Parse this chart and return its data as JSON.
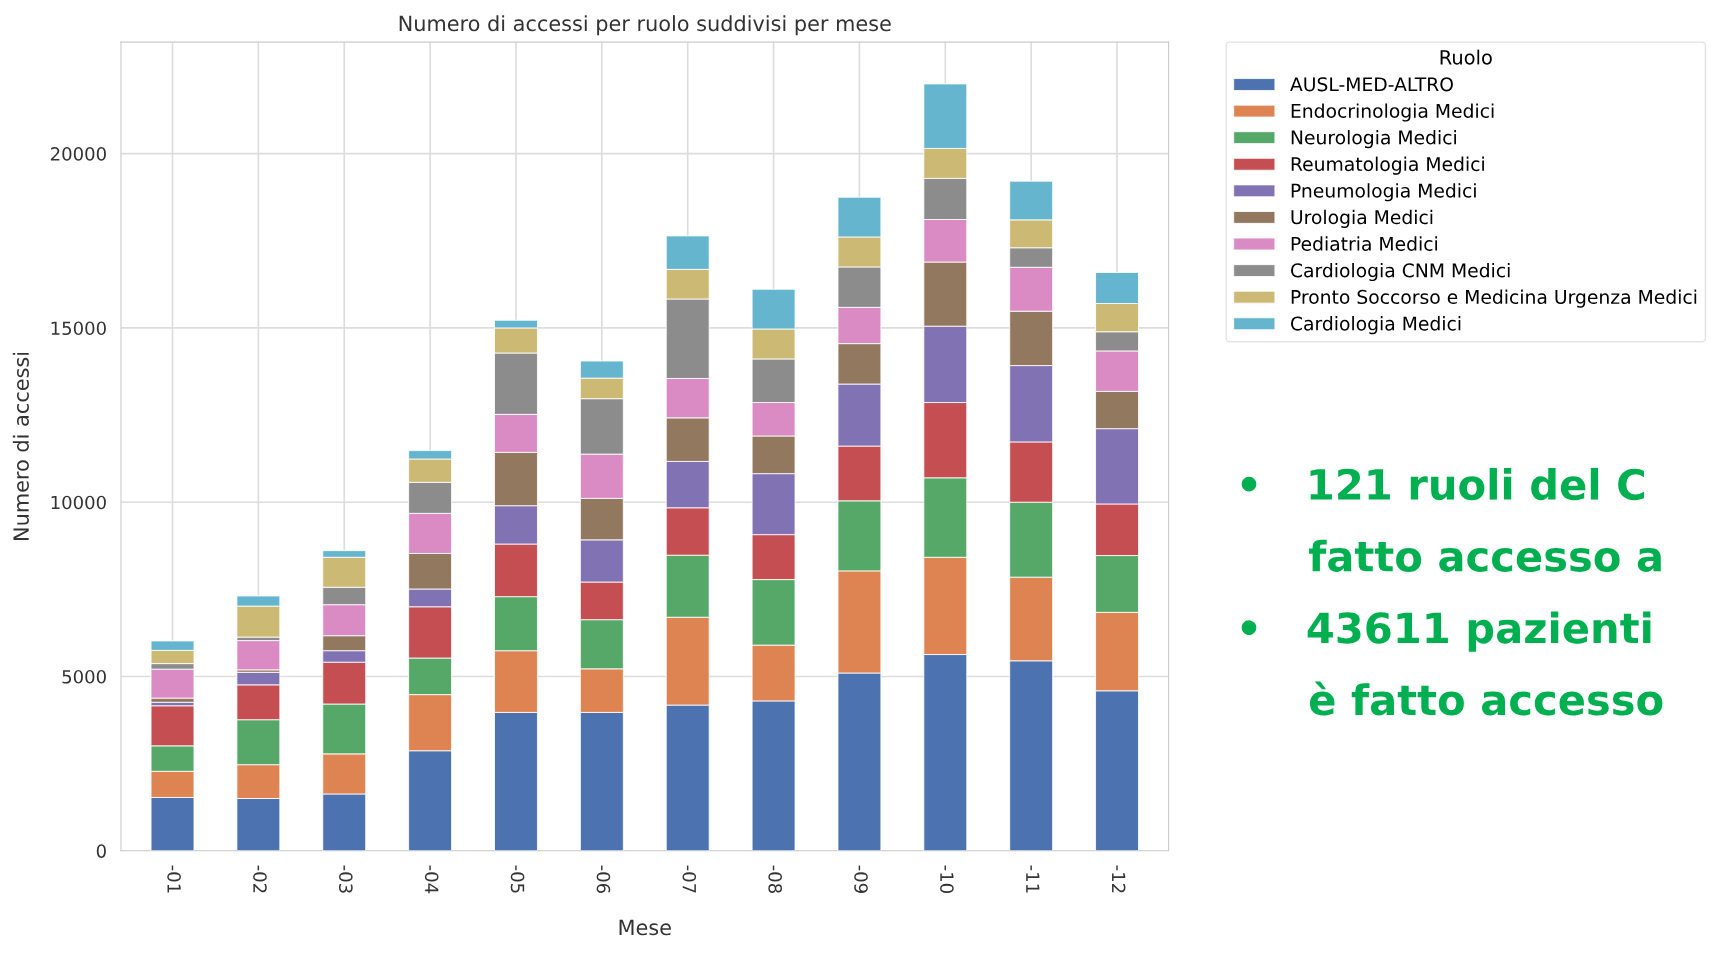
{
  "chart_data": {
    "type": "bar",
    "stacked": true,
    "title": "Numero di accessi per ruolo suddivisi per mese",
    "xlabel": "Mese",
    "ylabel": "Numero di accessi",
    "legend_title": "Ruolo",
    "legend": "right",
    "grid": true,
    "categories": [
      "-01",
      "-02",
      "-03",
      "-04",
      "-05",
      "-06",
      "-07",
      "-08",
      "-09",
      "-10",
      "-11",
      "-12"
    ],
    "ylim": [
      0,
      23200
    ],
    "yticks": [
      0,
      5000,
      10000,
      15000,
      20000
    ],
    "series": [
      {
        "name": "AUSL-MED-ALTRO",
        "color": "#4c72b0",
        "values": [
          1530,
          1500,
          1630,
          2870,
          3970,
          3970,
          4180,
          4300,
          5100,
          5630,
          5450,
          4590
        ]
      },
      {
        "name": "Endocrinologia Medici",
        "color": "#dd8452",
        "values": [
          750,
          970,
          1150,
          1610,
          1770,
          1250,
          2520,
          1600,
          2930,
          2790,
          2400,
          2250
        ]
      },
      {
        "name": "Neurologia Medici",
        "color": "#55a868",
        "values": [
          730,
          1290,
          1430,
          1050,
          1550,
          1410,
          1780,
          1880,
          2010,
          2280,
          2150,
          1630
        ]
      },
      {
        "name": "Reumatologia Medici",
        "color": "#c44e52",
        "values": [
          1150,
          1000,
          1200,
          1470,
          1510,
          1080,
          1360,
          1290,
          1570,
          2160,
          1730,
          1480
        ]
      },
      {
        "name": "Pneumologia Medici",
        "color": "#8172b3",
        "values": [
          100,
          360,
          330,
          510,
          1100,
          1210,
          1330,
          1750,
          1780,
          2190,
          2190,
          2160
        ]
      },
      {
        "name": "Urologia Medici",
        "color": "#937860",
        "values": [
          120,
          70,
          430,
          1020,
          1530,
          1190,
          1250,
          1080,
          1160,
          1840,
          1560,
          1070
        ]
      },
      {
        "name": "Pediatria Medici",
        "color": "#da8bc3",
        "values": [
          830,
          840,
          890,
          1150,
          1090,
          1270,
          1130,
          960,
          1040,
          1220,
          1260,
          1160
        ]
      },
      {
        "name": "Cardiologia CNM Medici",
        "color": "#8c8c8c",
        "values": [
          160,
          100,
          500,
          890,
          1760,
          1590,
          2280,
          1250,
          1160,
          1180,
          560,
          550
        ]
      },
      {
        "name": "Pronto Soccorso e Medicina Urgenza Medici",
        "color": "#ccb974",
        "values": [
          380,
          890,
          860,
          670,
          720,
          590,
          850,
          860,
          860,
          860,
          800,
          810
        ]
      },
      {
        "name": "Cardiologia Medici",
        "color": "#64b5cd",
        "values": [
          270,
          290,
          190,
          240,
          220,
          490,
          960,
          1140,
          1140,
          1850,
          1110,
          890
        ]
      }
    ],
    "annotations": [
      "•   121 ruoli del C",
      "     fatto accesso a",
      "•   43611 pazienti",
      "     è fatto accesso"
    ]
  }
}
